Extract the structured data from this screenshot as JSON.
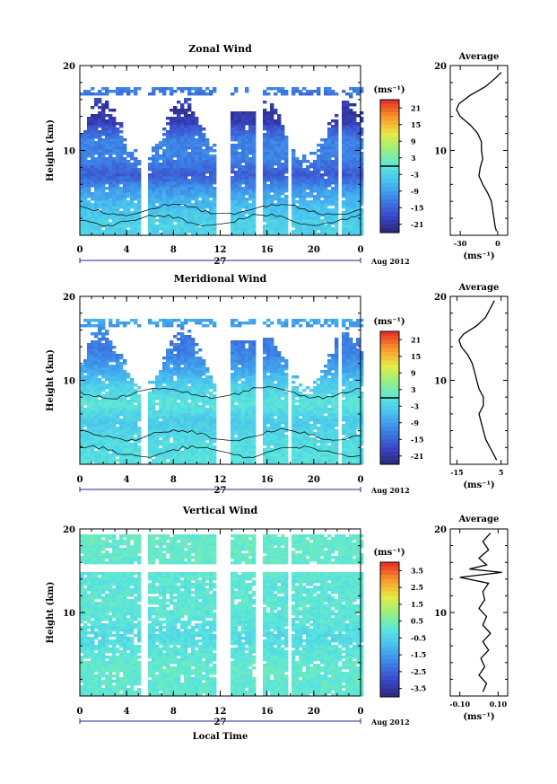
{
  "figure": {
    "x_axis_title": "Local Time",
    "date_label": "Aug 2012",
    "day_label": "27",
    "average_title": "Average"
  },
  "chart_data": [
    {
      "type": "heatmap",
      "title": "Zonal Wind",
      "ylabel": "Height (km)",
      "xlabel": "",
      "x_ticks": [
        "0",
        "4",
        "8",
        "12",
        "16",
        "20",
        "0"
      ],
      "x_range_hours": [
        0,
        24
      ],
      "y_range_km": [
        0,
        20
      ],
      "y_ticks": [
        "20",
        "10"
      ],
      "colorbar": {
        "unit": "(ms⁻¹)",
        "ticks": [
          "21",
          "15",
          "9",
          "3",
          "-3",
          "-9",
          "-15",
          "-21"
        ],
        "range": [
          -24,
          24
        ],
        "marker": 0
      },
      "data_gaps_hours": [
        [
          5.2,
          5.8
        ],
        [
          11.5,
          12.8
        ],
        [
          15.0,
          15.5
        ],
        [
          17.6,
          18.0
        ],
        [
          21.8,
          22.2
        ]
      ],
      "profiles": [
        {
          "h": 1,
          "v": -3
        },
        {
          "h": 3,
          "v": -5
        },
        {
          "h": 5,
          "v": -9
        },
        {
          "h": 7,
          "v": -16
        },
        {
          "h": 9,
          "v": -12
        },
        {
          "h": 11,
          "v": -12
        },
        {
          "h": 13,
          "v": -18
        },
        {
          "h": 15,
          "v": -20
        },
        {
          "h": 17,
          "v": -12
        }
      ],
      "average": {
        "x_ticks": [
          "-30",
          "0"
        ],
        "x_range": [
          -38,
          8
        ],
        "y_ticks": [
          "20",
          "10"
        ],
        "unit": "(ms⁻¹)",
        "height_km": [
          0.5,
          1,
          2,
          3,
          4,
          5,
          6,
          7,
          8,
          9,
          10,
          11,
          12,
          13,
          14,
          14.8,
          15.5,
          16.5,
          17.5,
          18.5,
          19.2
        ],
        "values": [
          -1,
          -2,
          -3,
          -4,
          -5,
          -8,
          -12,
          -15,
          -14,
          -12,
          -13,
          -13,
          -16,
          -22,
          -30,
          -33,
          -31,
          -22,
          -10,
          -2,
          3
        ]
      }
    },
    {
      "type": "heatmap",
      "title": "Meridional Wind",
      "ylabel": "Height (km)",
      "xlabel": "",
      "x_ticks": [
        "0",
        "4",
        "8",
        "12",
        "16",
        "20",
        "0"
      ],
      "x_range_hours": [
        0,
        24
      ],
      "y_range_km": [
        0,
        20
      ],
      "y_ticks": [
        "20",
        "10"
      ],
      "colorbar": {
        "unit": "(ms⁻¹)",
        "ticks": [
          "21",
          "15",
          "9",
          "3",
          "-3",
          "-9",
          "-15",
          "-21"
        ],
        "range": [
          -24,
          24
        ],
        "marker": 0
      },
      "data_gaps_hours": [
        [
          5.2,
          5.8
        ],
        [
          11.5,
          12.8
        ],
        [
          15.0,
          15.5
        ],
        [
          17.6,
          18.0
        ],
        [
          21.8,
          22.2
        ]
      ],
      "profiles": [
        {
          "h": 1,
          "v": -1
        },
        {
          "h": 3,
          "v": -2
        },
        {
          "h": 5,
          "v": -4
        },
        {
          "h": 7,
          "v": 0
        },
        {
          "h": 9,
          "v": -3
        },
        {
          "h": 11,
          "v": -8
        },
        {
          "h": 13,
          "v": -12
        },
        {
          "h": 15,
          "v": -13
        },
        {
          "h": 17,
          "v": -8
        }
      ],
      "average": {
        "x_ticks": [
          "-15",
          "5"
        ],
        "x_range": [
          -18,
          8
        ],
        "y_ticks": [
          "20",
          "10"
        ],
        "unit": "(ms⁻¹)",
        "height_km": [
          0.5,
          1,
          2,
          3,
          4,
          5,
          6,
          7,
          8,
          9,
          10,
          11,
          12,
          13,
          14,
          14.8,
          15.5,
          16.5,
          17.5,
          18.5,
          19.5
        ],
        "values": [
          3,
          2,
          0,
          -2,
          -3,
          -4,
          -5,
          -3,
          -3,
          -5,
          -6,
          -7,
          -8,
          -10,
          -13,
          -14,
          -12,
          -6,
          -2,
          0,
          2
        ]
      }
    },
    {
      "type": "heatmap",
      "title": "Vertical Wind",
      "ylabel": "Height (km)",
      "xlabel": "Local Time",
      "x_ticks": [
        "0",
        "4",
        "8",
        "12",
        "16",
        "20",
        "0"
      ],
      "x_range_hours": [
        0,
        24
      ],
      "y_range_km": [
        0,
        20
      ],
      "y_ticks": [
        "20",
        "10"
      ],
      "colorbar": {
        "unit": "(ms⁻¹)",
        "ticks": [
          "3.5",
          "2.5",
          "1.5",
          "0.5",
          "-0.5",
          "-1.5",
          "-2.5",
          "-3.5"
        ],
        "range": [
          -4,
          4
        ],
        "marker": null
      },
      "data_gaps_hours": [
        [
          5.2,
          5.8
        ],
        [
          11.5,
          12.8
        ],
        [
          15.0,
          15.5
        ],
        [
          17.6,
          18.0
        ]
      ],
      "profiles": [
        {
          "h": 1,
          "v": 0.1
        },
        {
          "h": 3,
          "v": 0.2
        },
        {
          "h": 5,
          "v": 0
        },
        {
          "h": 7,
          "v": -0.3
        },
        {
          "h": 9,
          "v": 0
        },
        {
          "h": 11,
          "v": 0.1
        },
        {
          "h": 13,
          "v": 0
        },
        {
          "h": 15,
          "v": 0.1
        },
        {
          "h": 17,
          "v": 0.2
        }
      ],
      "average": {
        "x_ticks": [
          "-0.10",
          "0.10"
        ],
        "x_range": [
          -0.15,
          0.15
        ],
        "y_ticks": [
          "20",
          "10"
        ],
        "unit": "(ms⁻¹)",
        "height_km": [
          0.5,
          1.5,
          2.5,
          3.5,
          4.5,
          5.5,
          6.5,
          7.5,
          8.5,
          9.5,
          10.5,
          11.5,
          12.5,
          13.5,
          14.2,
          14.8,
          15.2,
          15.7,
          16.5,
          17.5,
          18.5,
          19.5
        ],
        "values": [
          0.02,
          0.04,
          0.0,
          0.03,
          0.01,
          0.05,
          0.02,
          0.06,
          0.02,
          0.04,
          0.0,
          0.03,
          0.02,
          0.05,
          -0.1,
          0.12,
          -0.05,
          0.04,
          0.0,
          0.05,
          0.02,
          0.06
        ]
      }
    }
  ]
}
